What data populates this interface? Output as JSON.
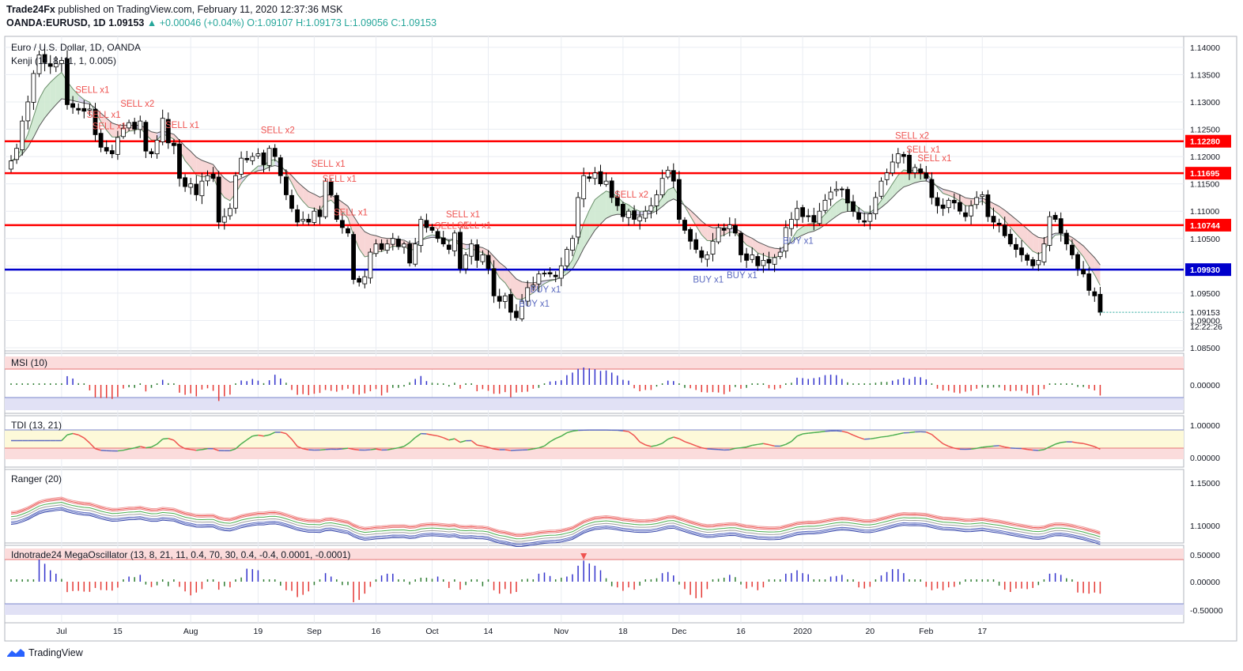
{
  "header": {
    "publisher": "Trade24Fx",
    "published_text": "published on TradingView.com, February 11, 2020 12:37:36 MSK",
    "symbol": "OANDA:EURUSD, 1D",
    "last": "1.09153",
    "change": "▲ +0.00046 (+0.04%)",
    "o_label": "O:",
    "o": "1.09107",
    "h_label": "H:",
    "h": "1.09173",
    "l_label": "L:",
    "l": "1.09056",
    "c_label": "C:",
    "c": "1.09153"
  },
  "colors": {
    "up_text": "#26a69a",
    "resistance": "#ff0000",
    "support": "#0000cc",
    "sell_text": "#ef5350",
    "buy_text": "#5c6bc0",
    "grid": "#e9ecf2",
    "bull_fill": "#cde8cf",
    "bear_fill": "#f7d2d2",
    "neutral_fill": "#dad6f0"
  },
  "main_pane": {
    "title": "Euro / U.S. Dollar, 1D, OANDA",
    "indicator": "Kenji (11, 8, 11, 1, 0.005)",
    "price_ticks": [
      "1.14000",
      "1.13500",
      "1.13000",
      "1.12500",
      "1.12000",
      "1.11500",
      "1.11000",
      "1.10500",
      "1.10000",
      "1.09500",
      "1.09000",
      "1.08500"
    ],
    "countdown": "12:22:26",
    "last_label": "1.09153",
    "levels": [
      {
        "price": 1.1228,
        "label": "1.12280",
        "color": "red"
      },
      {
        "price": 1.11695,
        "label": "1.11695",
        "color": "red"
      },
      {
        "price": 1.10744,
        "label": "1.10744",
        "color": "red"
      },
      {
        "price": 1.0993,
        "label": "1.09930",
        "color": "blue"
      }
    ],
    "signals": [
      {
        "text": "SELL x1",
        "bar": 14
      },
      {
        "text": "SELL x1",
        "bar": 16
      },
      {
        "text": "SELL x1",
        "bar": 17
      },
      {
        "text": "SELL x2",
        "bar": 22
      },
      {
        "text": "SELL x1",
        "bar": 30
      },
      {
        "text": "SELL x2",
        "bar": 47
      },
      {
        "text": "SELL x1",
        "bar": 56
      },
      {
        "text": "SELL x1",
        "bar": 58
      },
      {
        "text": "SELL x1",
        "bar": 60
      },
      {
        "text": "SELL x1",
        "bar": 78
      },
      {
        "text": "SELL x1",
        "bar": 80
      },
      {
        "text": "SELL x1",
        "bar": 82
      },
      {
        "text": "SELL x2",
        "bar": 110
      },
      {
        "text": "BUY x1",
        "bar": 93
      },
      {
        "text": "BUY x1",
        "bar": 95
      },
      {
        "text": "BUY x1",
        "bar": 124
      },
      {
        "text": "BUY x1",
        "bar": 130
      },
      {
        "text": "BUY x1",
        "bar": 140
      },
      {
        "text": "SELL x2",
        "bar": 160
      },
      {
        "text": "SELL x1",
        "bar": 162
      },
      {
        "text": "SELL x1",
        "bar": 164
      }
    ]
  },
  "sub_panes": [
    {
      "id": "msi",
      "title": "MSI (10)",
      "ticks": [
        "0.00000"
      ]
    },
    {
      "id": "tdi",
      "title": "TDI (13, 21)",
      "ticks": [
        "1.00000",
        "0.00000"
      ]
    },
    {
      "id": "ranger",
      "title": "Ranger (20)",
      "ticks": [
        "1.15000",
        "1.10000"
      ]
    },
    {
      "id": "mega",
      "title": "Idnotrade24 MegaOscillator (13, 8, 21, 11, 0.4, 70, 30, 0.4, -0.4, 0.0001, -0.0001)",
      "ticks": [
        "0.50000",
        "0.00000",
        "-0.50000"
      ]
    }
  ],
  "time_axis": [
    {
      "label": "Jul",
      "bar": 9
    },
    {
      "label": "15",
      "bar": 19
    },
    {
      "label": "Aug",
      "bar": 32
    },
    {
      "label": "19",
      "bar": 44
    },
    {
      "label": "Sep",
      "bar": 54
    },
    {
      "label": "16",
      "bar": 65
    },
    {
      "label": "Oct",
      "bar": 75
    },
    {
      "label": "14",
      "bar": 85
    },
    {
      "label": "Nov",
      "bar": 98
    },
    {
      "label": "18",
      "bar": 109
    },
    {
      "label": "Dec",
      "bar": 119
    },
    {
      "label": "16",
      "bar": 130
    },
    {
      "label": "2020",
      "bar": 141
    },
    {
      "label": "20",
      "bar": 153
    },
    {
      "label": "Feb",
      "bar": 163
    },
    {
      "label": "17",
      "bar": 173
    }
  ],
  "brand": "TradingView",
  "chart_data": {
    "type": "candlestick",
    "title": "Euro / U.S. Dollar, 1D, OANDA",
    "ylabel": "",
    "ylim": [
      1.085,
      1.142
    ],
    "closes": [
      1.1192,
      1.1215,
      1.1265,
      1.13,
      1.1352,
      1.1386,
      1.1372,
      1.1365,
      1.137,
      1.1376,
      1.1295,
      1.129,
      1.1285,
      1.1283,
      1.1287,
      1.124,
      1.1217,
      1.121,
      1.1205,
      1.1235,
      1.1252,
      1.1262,
      1.125,
      1.1265,
      1.121,
      1.1205,
      1.123,
      1.127,
      1.1225,
      1.122,
      1.116,
      1.1145,
      1.115,
      1.113,
      1.1155,
      1.1165,
      1.116,
      1.108,
      1.109,
      1.1105,
      1.1165,
      1.1197,
      1.1194,
      1.12,
      1.1205,
      1.1185,
      1.1215,
      1.12,
      1.1165,
      1.113,
      1.1105,
      1.108,
      1.1085,
      1.108,
      1.11,
      1.109,
      1.1155,
      1.113,
      1.1085,
      1.107,
      1.106,
      1.0975,
      1.097,
      1.098,
      1.1025,
      1.104,
      1.103,
      1.104,
      1.105,
      1.1035,
      1.104,
      1.1005,
      1.104,
      1.1085,
      1.107,
      1.1065,
      1.105,
      1.104,
      1.103,
      1.106,
      1.0995,
      1.102,
      1.104,
      1.101,
      1.102,
      1.0995,
      1.0945,
      1.0935,
      1.0945,
      1.0915,
      1.0905,
      1.0935,
      1.096,
      1.0965,
      1.0985,
      1.0985,
      1.0985,
      1.098,
      1.1,
      1.103,
      1.105,
      1.1125,
      1.1165,
      1.116,
      1.117,
      1.115,
      1.1155,
      1.1125,
      1.111,
      1.109,
      1.11,
      1.1085,
      1.109,
      1.11,
      1.111,
      1.113,
      1.116,
      1.1175,
      1.1155,
      1.1085,
      1.1065,
      1.1045,
      1.103,
      1.1015,
      1.102,
      1.1045,
      1.107,
      1.1065,
      1.1075,
      1.106,
      1.102,
      1.101,
      1.102,
      1.1,
      1.101,
      1.1005,
      1.1015,
      1.1025,
      1.107,
      1.1085,
      1.1105,
      1.109,
      1.109,
      1.108,
      1.11,
      1.112,
      1.1135,
      1.114,
      1.114,
      1.1115,
      1.11,
      1.1085,
      1.108,
      1.1095,
      1.1125,
      1.1155,
      1.117,
      1.119,
      1.1205,
      1.12,
      1.117,
      1.118,
      1.117,
      1.116,
      1.1125,
      1.111,
      1.1105,
      1.112,
      1.1115,
      1.11,
      1.109,
      1.111,
      1.1125,
      1.113,
      1.109,
      1.108,
      1.1075,
      1.1055,
      1.104,
      1.103,
      1.102,
      1.101,
      1.1,
      1.101,
      1.104,
      1.109,
      1.1085,
      1.106,
      1.104,
      1.102,
      1.0995,
      1.0985,
      1.0955,
      1.0945,
      1.0915
    ]
  }
}
